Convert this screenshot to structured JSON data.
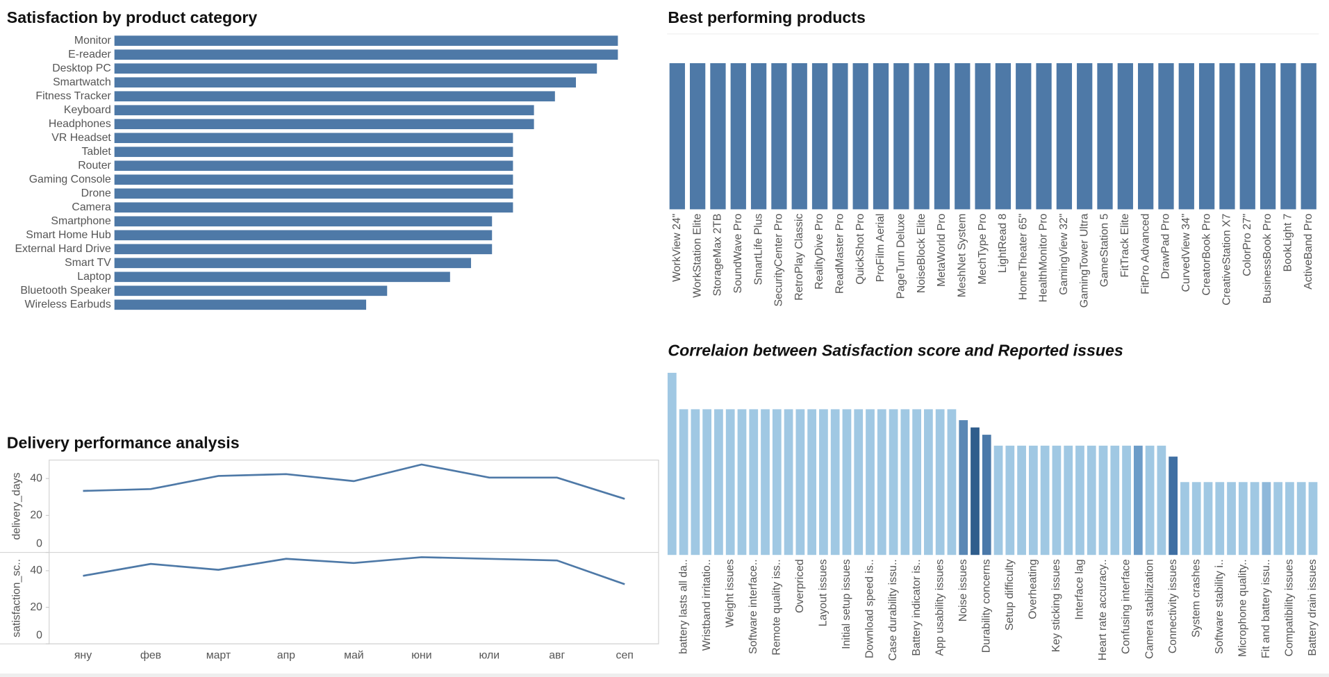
{
  "chart_data": [
    {
      "type": "bar",
      "orientation": "horizontal",
      "title": "Satisfaction by product category",
      "categories": [
        "Monitor",
        "E-reader",
        "Desktop PC",
        "Smartwatch",
        "Fitness Tracker",
        "Keyboard",
        "Headphones",
        "VR Headset",
        "Tablet",
        "Router",
        "Gaming Console",
        "Drone",
        "Camera",
        "Smartphone",
        "Smart Home Hub",
        "External Hard Drive",
        "Smart TV",
        "Laptop",
        "Bluetooth Speaker",
        "Wireless Earbuds"
      ],
      "values": [
        4.8,
        4.8,
        4.6,
        4.4,
        4.2,
        4.0,
        4.0,
        3.8,
        3.8,
        3.8,
        3.8,
        3.8,
        3.8,
        3.6,
        3.6,
        3.6,
        3.4,
        3.2,
        2.6,
        2.4
      ],
      "xlim": [
        0,
        4.8
      ],
      "color": "#4e79a7"
    },
    {
      "type": "bar",
      "title": "Best performing products",
      "categories": [
        "WorkView 24\"",
        "WorkStation Elite",
        "StorageMax 2TB",
        "SoundWave Pro",
        "SmartLife Plus",
        "SecurityCenter Pro",
        "RetroPlay Classic",
        "RealityDive Pro",
        "ReadMaster Pro",
        "QuickShot Pro",
        "ProFilm Aerial",
        "PageTurn Deluxe",
        "NoiseBlock Elite",
        "MetaWorld Pro",
        "MeshNet System",
        "MechType Pro",
        "LightRead 8",
        "HomeTheater 65\"",
        "HealthMonitor Pro",
        "GamingView 32\"",
        "GamingTower Ultra",
        "GameStation 5",
        "FitTrack Elite",
        "FitPro Advanced",
        "DrawPad Pro",
        "CurvedView 34\"",
        "CreatorBook Pro",
        "CreativeStation X7",
        "ColorPro 27\"",
        "BusinessBook Pro",
        "BookLight 7",
        "ActiveBand Pro"
      ],
      "values": [
        5,
        5,
        5,
        5,
        5,
        5,
        5,
        5,
        5,
        5,
        5,
        5,
        5,
        5,
        5,
        5,
        5,
        5,
        5,
        5,
        5,
        5,
        5,
        5,
        5,
        5,
        5,
        5,
        5,
        5,
        5,
        5
      ],
      "ylim": [
        0,
        6
      ],
      "color": "#4e79a7"
    },
    {
      "type": "bar",
      "title": "Correlaion between Satisfaction score and Reported issues",
      "categories": [
        null,
        "battery lasts all da..",
        null,
        "Wristband irritatio..",
        null,
        "Weight issues",
        null,
        "Software interface..",
        null,
        "Remote quality iss..",
        null,
        "Overpriced",
        null,
        "Layout issues",
        null,
        "Initial setup issues",
        null,
        "Download speed is..",
        null,
        "Case durability issu..",
        null,
        "Battery indicator is..",
        null,
        "App usability issues",
        null,
        "Noise issues",
        null,
        "Durability concerns",
        null,
        "Setup difficulty",
        null,
        "Overheating",
        null,
        "Key sticking issues",
        null,
        "Interface lag",
        null,
        "Heart rate accuracy..",
        null,
        "Confusing interface",
        null,
        "Camera stabilization",
        null,
        "Connectivity issues",
        null,
        "System crashes",
        null,
        "Software stability i..",
        null,
        "Microphone quality..",
        null,
        "Fit and battery issu..",
        null,
        "Compatibility issues",
        null,
        "Battery drain issues"
      ],
      "values": [
        5,
        4,
        4,
        4,
        4,
        4,
        4,
        4,
        4,
        4,
        4,
        4,
        4,
        4,
        4,
        4,
        4,
        4,
        4,
        4,
        4,
        4,
        4,
        4,
        4,
        3.7,
        3.5,
        3.3,
        3,
        3,
        3,
        3,
        3,
        3,
        3,
        3,
        3,
        3,
        3,
        3,
        3,
        3,
        3,
        2.7,
        2,
        2,
        2,
        2,
        2,
        2,
        2,
        2,
        2,
        2,
        2,
        2
      ],
      "colors": [
        "#a0c8e3",
        "#a0c8e3",
        "#a0c8e3",
        "#a0c8e3",
        "#a0c8e3",
        "#a0c8e3",
        "#a0c8e3",
        "#a0c8e3",
        "#a0c8e3",
        "#a0c8e3",
        "#a0c8e3",
        "#a0c8e3",
        "#a0c8e3",
        "#a0c8e3",
        "#a0c8e3",
        "#a0c8e3",
        "#a0c8e3",
        "#a0c8e3",
        "#a0c8e3",
        "#a0c8e3",
        "#a0c8e3",
        "#a0c8e3",
        "#a0c8e3",
        "#a0c8e3",
        "#a0c8e3",
        "#5a88b5",
        "#2f5d8c",
        "#4b79a9",
        "#a0c8e3",
        "#a0c8e3",
        "#a0c8e3",
        "#a0c8e3",
        "#a0c8e3",
        "#a0c8e3",
        "#a0c8e3",
        "#a0c8e3",
        "#a0c8e3",
        "#a0c8e3",
        "#a0c8e3",
        "#a0c8e3",
        "#6c9cc8",
        "#a0c8e3",
        "#a0c8e3",
        "#3f6fa3",
        "#a0c8e3",
        "#a0c8e3",
        "#a0c8e3",
        "#a0c8e3",
        "#a0c8e3",
        "#a0c8e3",
        "#a0c8e3",
        "#8fb8da",
        "#a0c8e3",
        "#a0c8e3",
        "#a0c8e3",
        "#a0c8e3"
      ],
      "ylim": [
        0,
        5
      ]
    },
    {
      "type": "line",
      "title": "Delivery performance analysis",
      "categories": [
        "яну",
        "фев",
        "март",
        "апр",
        "май",
        "юни",
        "юли",
        "авг",
        "сеп"
      ],
      "series": [
        {
          "name": "delivery_days",
          "color": "#4e79a7",
          "values": [
            33.3,
            34.3,
            41.4,
            42.4,
            38.6,
            47.6,
            40.5,
            40.5,
            29
          ]
        },
        {
          "name": "satisfaction_sc..",
          "color": "#4e79a7",
          "values": [
            37.2,
            43.7,
            40.5,
            46.5,
            44.2,
            47.4,
            46.5,
            45.6,
            32.6
          ]
        }
      ],
      "ylim": [
        0,
        50
      ],
      "yticks": [
        0,
        20,
        40
      ]
    }
  ]
}
